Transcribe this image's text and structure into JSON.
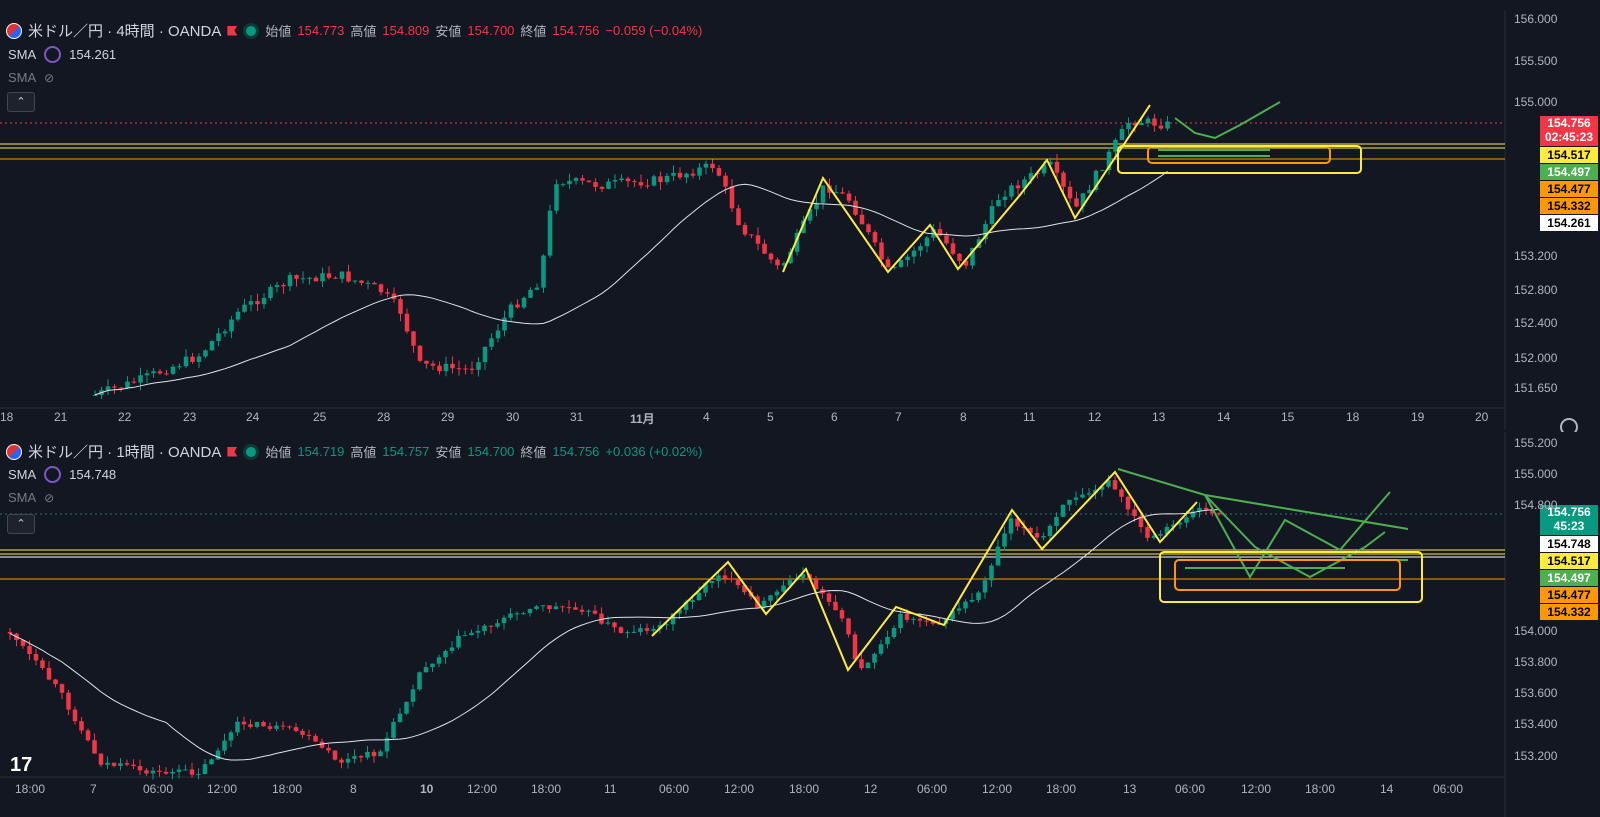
{
  "colors": {
    "up": "#089981",
    "down": "#f23645",
    "bg": "#131722",
    "sma": "#e0e3eb",
    "yellow": "#ffeb3b",
    "orange": "#ff9800",
    "green": "#4caf50"
  },
  "top": {
    "symbol": "米ドル／円 · 4時間 · OANDA",
    "ohlc": [
      {
        "k": "始値",
        "v": "154.773"
      },
      {
        "k": "高値",
        "v": "154.809"
      },
      {
        "k": "安値",
        "v": "154.700"
      },
      {
        "k": "終値",
        "v": "154.756"
      }
    ],
    "change": "−0.059 (−0.04%)",
    "sma_label": "SMA",
    "sma_value": "154.261",
    "sma2_label": "SMA",
    "price_tag": "154.756",
    "countdown": "02:45:23",
    "levels": [
      {
        "v": "154.517",
        "c": "#ffeb3b"
      },
      {
        "v": "154.497",
        "c": "#4caf50"
      },
      {
        "v": "154.477",
        "c": "#ff9800"
      },
      {
        "v": "154.332",
        "c": "#ff9800"
      },
      {
        "v": "154.261",
        "c": "#ffffff"
      }
    ],
    "y_ticks": [
      "156.000",
      "155.500",
      "155.000",
      "153.200",
      "152.800",
      "152.400",
      "152.000",
      "151.650"
    ],
    "x_ticks": [
      "18",
      "21",
      "22",
      "23",
      "24",
      "25",
      "28",
      "29",
      "30",
      "31",
      "11月",
      "4",
      "5",
      "6",
      "7",
      "8",
      "11",
      "12",
      "13",
      "14",
      "15",
      "18",
      "19",
      "20"
    ],
    "chart_data": {
      "type": "candlestick",
      "timeframe": "4h",
      "ylim": [
        151.5,
        156.1
      ],
      "last_close": 154.756,
      "sma": 154.261
    }
  },
  "bottom": {
    "symbol": "米ドル／円 · 1時間 · OANDA",
    "ohlc": [
      {
        "k": "始値",
        "v": "154.719"
      },
      {
        "k": "高値",
        "v": "154.757"
      },
      {
        "k": "安値",
        "v": "154.700"
      },
      {
        "k": "終値",
        "v": "154.756"
      }
    ],
    "change": "+0.036 (+0.02%)",
    "sma_label": "SMA",
    "sma_value": "154.748",
    "sma2_label": "SMA",
    "price_tag": "154.756",
    "countdown": "45:23",
    "levels": [
      {
        "v": "154.748",
        "c": "#ffffff"
      },
      {
        "v": "154.517",
        "c": "#ffeb3b"
      },
      {
        "v": "154.497",
        "c": "#4caf50"
      },
      {
        "v": "154.477",
        "c": "#ff9800"
      },
      {
        "v": "154.332",
        "c": "#ff9800"
      }
    ],
    "y_ticks": [
      "155.200",
      "155.000",
      "154.800",
      "154.000",
      "153.800",
      "153.600",
      "153.400",
      "153.200"
    ],
    "x_ticks": [
      "18:00",
      "7",
      "06:00",
      "12:00",
      "18:00",
      "8",
      "10",
      "12:00",
      "18:00",
      "11",
      "06:00",
      "12:00",
      "18:00",
      "12",
      "06:00",
      "12:00",
      "18:00",
      "13",
      "06:00",
      "12:00",
      "18:00",
      "14",
      "06:00"
    ],
    "chart_data": {
      "type": "candlestick",
      "timeframe": "1h",
      "ylim": [
        153.1,
        155.3
      ],
      "last_close": 154.756,
      "sma": 154.748
    }
  },
  "logo": "17"
}
